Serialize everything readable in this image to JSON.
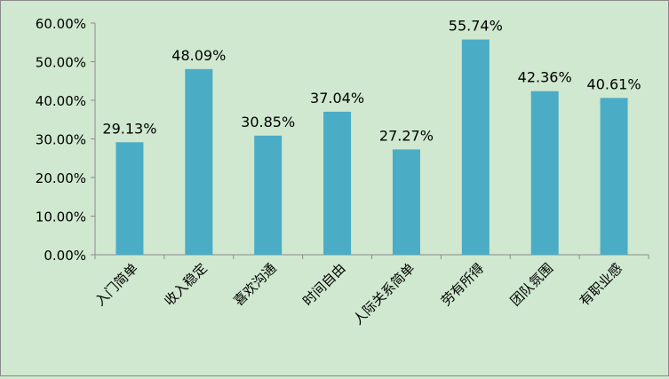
{
  "chart_data": {
    "type": "bar",
    "categories": [
      "入门简单",
      "收入稳定",
      "喜欢沟通",
      "时间自由",
      "人际关系简单",
      "劳有所得",
      "团队氛围",
      "有职业感"
    ],
    "values": [
      29.13,
      48.09,
      30.85,
      37.04,
      27.27,
      55.74,
      42.36,
      40.61
    ],
    "data_labels": [
      "29.13%",
      "48.09%",
      "30.85%",
      "37.04%",
      "27.27%",
      "55.74%",
      "42.36%",
      "40.61%"
    ],
    "y_ticks": [
      "0.00%",
      "10.00%",
      "20.00%",
      "30.00%",
      "40.00%",
      "50.00%",
      "60.00%"
    ],
    "ylim": [
      0,
      60
    ],
    "title": "",
    "xlabel": "",
    "ylabel": "",
    "grid": false,
    "legend": "none",
    "colors": {
      "bar": "#4bacc6",
      "background": "#cfe8cf",
      "axis": "#8c8c8c"
    }
  }
}
